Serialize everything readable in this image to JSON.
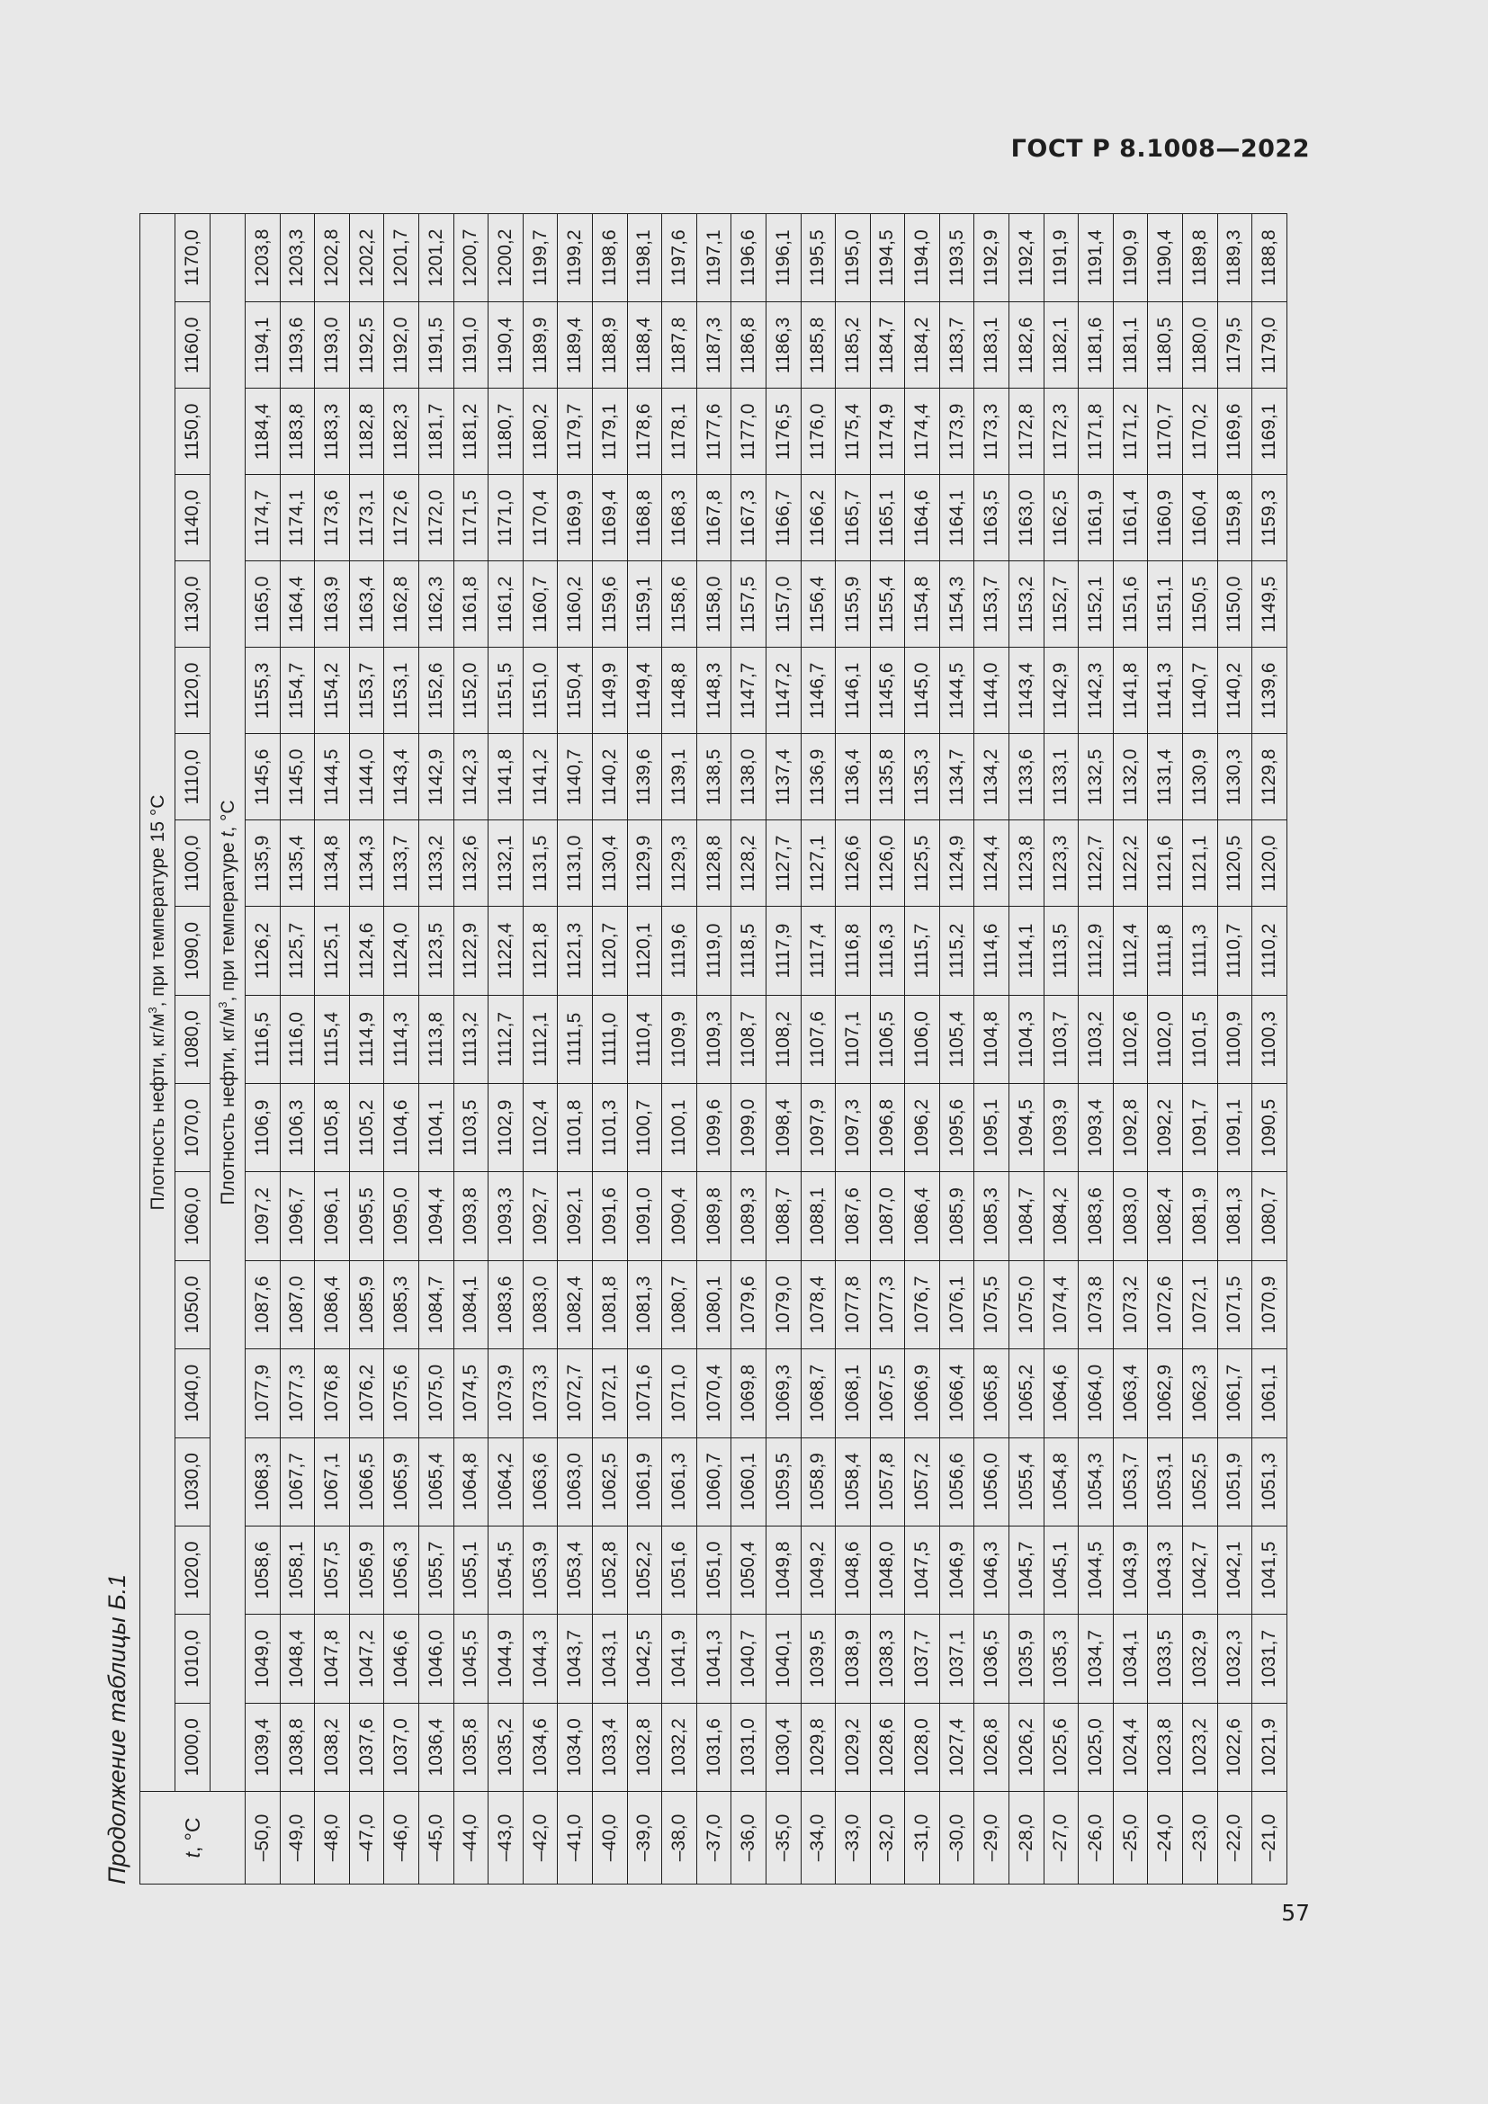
{
  "header": {
    "standard": "ГОСТ Р 8.1008—2022"
  },
  "page_number": "57",
  "caption": "Продолжение таблицы Б.1",
  "table": {
    "t_header": "t, °C",
    "group_header_top": "Плотность нефти, кг/м3, при температуре 15 °C",
    "group_header_top_parts": {
      "before": "Плотность нефти, кг/м",
      "sup": "3",
      "after": ", при температуре 15 °C"
    },
    "group_header_bottom_parts": {
      "before": "Плотность нефти, кг/м",
      "sup": "3",
      "after": ", при температуре ",
      "italic": "t",
      "end": ", °C"
    },
    "columns": [
      "1000,0",
      "1010,0",
      "1020,0",
      "1030,0",
      "1040,0",
      "1050,0",
      "1060,0",
      "1070,0",
      "1080,0",
      "1090,0",
      "1100,0",
      "1110,0",
      "1120,0",
      "1130,0",
      "1140,0",
      "1150,0",
      "1160,0",
      "1170,0"
    ],
    "rows": [
      {
        "t": "–50,0",
        "v": [
          "1039,4",
          "1049,0",
          "1058,6",
          "1068,3",
          "1077,9",
          "1087,6",
          "1097,2",
          "1106,9",
          "1116,5",
          "1126,2",
          "1135,9",
          "1145,6",
          "1155,3",
          "1165,0",
          "1174,7",
          "1184,4",
          "1194,1",
          "1203,8"
        ]
      },
      {
        "t": "–49,0",
        "v": [
          "1038,8",
          "1048,4",
          "1058,1",
          "1067,7",
          "1077,3",
          "1087,0",
          "1096,7",
          "1106,3",
          "1116,0",
          "1125,7",
          "1135,4",
          "1145,0",
          "1154,7",
          "1164,4",
          "1174,1",
          "1183,8",
          "1193,6",
          "1203,3"
        ]
      },
      {
        "t": "–48,0",
        "v": [
          "1038,2",
          "1047,8",
          "1057,5",
          "1067,1",
          "1076,8",
          "1086,4",
          "1096,1",
          "1105,8",
          "1115,4",
          "1125,1",
          "1134,8",
          "1144,5",
          "1154,2",
          "1163,9",
          "1173,6",
          "1183,3",
          "1193,0",
          "1202,8"
        ]
      },
      {
        "t": "–47,0",
        "v": [
          "1037,6",
          "1047,2",
          "1056,9",
          "1066,5",
          "1076,2",
          "1085,9",
          "1095,5",
          "1105,2",
          "1114,9",
          "1124,6",
          "1134,3",
          "1144,0",
          "1153,7",
          "1163,4",
          "1173,1",
          "1182,8",
          "1192,5",
          "1202,2"
        ]
      },
      {
        "t": "–46,0",
        "v": [
          "1037,0",
          "1046,6",
          "1056,3",
          "1065,9",
          "1075,6",
          "1085,3",
          "1095,0",
          "1104,6",
          "1114,3",
          "1124,0",
          "1133,7",
          "1143,4",
          "1153,1",
          "1162,8",
          "1172,6",
          "1182,3",
          "1192,0",
          "1201,7"
        ]
      },
      {
        "t": "–45,0",
        "v": [
          "1036,4",
          "1046,0",
          "1055,7",
          "1065,4",
          "1075,0",
          "1084,7",
          "1094,4",
          "1104,1",
          "1113,8",
          "1123,5",
          "1133,2",
          "1142,9",
          "1152,6",
          "1162,3",
          "1172,0",
          "1181,7",
          "1191,5",
          "1201,2"
        ]
      },
      {
        "t": "–44,0",
        "v": [
          "1035,8",
          "1045,5",
          "1055,1",
          "1064,8",
          "1074,5",
          "1084,1",
          "1093,8",
          "1103,5",
          "1113,2",
          "1122,9",
          "1132,6",
          "1142,3",
          "1152,0",
          "1161,8",
          "1171,5",
          "1181,2",
          "1191,0",
          "1200,7"
        ]
      },
      {
        "t": "–43,0",
        "v": [
          "1035,2",
          "1044,9",
          "1054,5",
          "1064,2",
          "1073,9",
          "1083,6",
          "1093,3",
          "1102,9",
          "1112,7",
          "1122,4",
          "1132,1",
          "1141,8",
          "1151,5",
          "1161,2",
          "1171,0",
          "1180,7",
          "1190,4",
          "1200,2"
        ]
      },
      {
        "t": "–42,0",
        "v": [
          "1034,6",
          "1044,3",
          "1053,9",
          "1063,6",
          "1073,3",
          "1083,0",
          "1092,7",
          "1102,4",
          "1112,1",
          "1121,8",
          "1131,5",
          "1141,2",
          "1151,0",
          "1160,7",
          "1170,4",
          "1180,2",
          "1189,9",
          "1199,7"
        ]
      },
      {
        "t": "–41,0",
        "v": [
          "1034,0",
          "1043,7",
          "1053,4",
          "1063,0",
          "1072,7",
          "1082,4",
          "1092,1",
          "1101,8",
          "1111,5",
          "1121,3",
          "1131,0",
          "1140,7",
          "1150,4",
          "1160,2",
          "1169,9",
          "1179,7",
          "1189,4",
          "1199,2"
        ]
      },
      {
        "t": "–40,0",
        "v": [
          "1033,4",
          "1043,1",
          "1052,8",
          "1062,5",
          "1072,1",
          "1081,8",
          "1091,6",
          "1101,3",
          "1111,0",
          "1120,7",
          "1130,4",
          "1140,2",
          "1149,9",
          "1159,6",
          "1169,4",
          "1179,1",
          "1188,9",
          "1198,6"
        ]
      },
      {
        "t": "–39,0",
        "v": [
          "1032,8",
          "1042,5",
          "1052,2",
          "1061,9",
          "1071,6",
          "1081,3",
          "1091,0",
          "1100,7",
          "1110,4",
          "1120,1",
          "1129,9",
          "1139,6",
          "1149,4",
          "1159,1",
          "1168,8",
          "1178,6",
          "1188,4",
          "1198,1"
        ]
      },
      {
        "t": "–38,0",
        "v": [
          "1032,2",
          "1041,9",
          "1051,6",
          "1061,3",
          "1071,0",
          "1080,7",
          "1090,4",
          "1100,1",
          "1109,9",
          "1119,6",
          "1129,3",
          "1139,1",
          "1148,8",
          "1158,6",
          "1168,3",
          "1178,1",
          "1187,8",
          "1197,6"
        ]
      },
      {
        "t": "–37,0",
        "v": [
          "1031,6",
          "1041,3",
          "1051,0",
          "1060,7",
          "1070,4",
          "1080,1",
          "1089,8",
          "1099,6",
          "1109,3",
          "1119,0",
          "1128,8",
          "1138,5",
          "1148,3",
          "1158,0",
          "1167,8",
          "1177,6",
          "1187,3",
          "1197,1"
        ]
      },
      {
        "t": "–36,0",
        "v": [
          "1031,0",
          "1040,7",
          "1050,4",
          "1060,1",
          "1069,8",
          "1079,6",
          "1089,3",
          "1099,0",
          "1108,7",
          "1118,5",
          "1128,2",
          "1138,0",
          "1147,7",
          "1157,5",
          "1167,3",
          "1177,0",
          "1186,8",
          "1196,6"
        ]
      },
      {
        "t": "–35,0",
        "v": [
          "1030,4",
          "1040,1",
          "1049,8",
          "1059,5",
          "1069,3",
          "1079,0",
          "1088,7",
          "1098,4",
          "1108,2",
          "1117,9",
          "1127,7",
          "1137,4",
          "1147,2",
          "1157,0",
          "1166,7",
          "1176,5",
          "1186,3",
          "1196,1"
        ]
      },
      {
        "t": "–34,0",
        "v": [
          "1029,8",
          "1039,5",
          "1049,2",
          "1058,9",
          "1068,7",
          "1078,4",
          "1088,1",
          "1097,9",
          "1107,6",
          "1117,4",
          "1127,1",
          "1136,9",
          "1146,7",
          "1156,4",
          "1166,2",
          "1176,0",
          "1185,8",
          "1195,5"
        ]
      },
      {
        "t": "–33,0",
        "v": [
          "1029,2",
          "1038,9",
          "1048,6",
          "1058,4",
          "1068,1",
          "1077,8",
          "1087,6",
          "1097,3",
          "1107,1",
          "1116,8",
          "1126,6",
          "1136,4",
          "1146,1",
          "1155,9",
          "1165,7",
          "1175,4",
          "1185,2",
          "1195,0"
        ]
      },
      {
        "t": "–32,0",
        "v": [
          "1028,6",
          "1038,3",
          "1048,0",
          "1057,8",
          "1067,5",
          "1077,3",
          "1087,0",
          "1096,8",
          "1106,5",
          "1116,3",
          "1126,0",
          "1135,8",
          "1145,6",
          "1155,4",
          "1165,1",
          "1174,9",
          "1184,7",
          "1194,5"
        ]
      },
      {
        "t": "–31,0",
        "v": [
          "1028,0",
          "1037,7",
          "1047,5",
          "1057,2",
          "1066,9",
          "1076,7",
          "1086,4",
          "1096,2",
          "1106,0",
          "1115,7",
          "1125,5",
          "1135,3",
          "1145,0",
          "1154,8",
          "1164,6",
          "1174,4",
          "1184,2",
          "1194,0"
        ]
      },
      {
        "t": "–30,0",
        "v": [
          "1027,4",
          "1037,1",
          "1046,9",
          "1056,6",
          "1066,4",
          "1076,1",
          "1085,9",
          "1095,6",
          "1105,4",
          "1115,2",
          "1124,9",
          "1134,7",
          "1144,5",
          "1154,3",
          "1164,1",
          "1173,9",
          "1183,7",
          "1193,5"
        ]
      },
      {
        "t": "–29,0",
        "v": [
          "1026,8",
          "1036,5",
          "1046,3",
          "1056,0",
          "1065,8",
          "1075,5",
          "1085,3",
          "1095,1",
          "1104,8",
          "1114,6",
          "1124,4",
          "1134,2",
          "1144,0",
          "1153,7",
          "1163,5",
          "1173,3",
          "1183,1",
          "1192,9"
        ]
      },
      {
        "t": "–28,0",
        "v": [
          "1026,2",
          "1035,9",
          "1045,7",
          "1055,4",
          "1065,2",
          "1075,0",
          "1084,7",
          "1094,5",
          "1104,3",
          "1114,1",
          "1123,8",
          "1133,6",
          "1143,4",
          "1153,2",
          "1163,0",
          "1172,8",
          "1182,6",
          "1192,4"
        ]
      },
      {
        "t": "–27,0",
        "v": [
          "1025,6",
          "1035,3",
          "1045,1",
          "1054,8",
          "1064,6",
          "1074,4",
          "1084,2",
          "1093,9",
          "1103,7",
          "1113,5",
          "1123,3",
          "1133,1",
          "1142,9",
          "1152,7",
          "1162,5",
          "1172,3",
          "1182,1",
          "1191,9"
        ]
      },
      {
        "t": "–26,0",
        "v": [
          "1025,0",
          "1034,7",
          "1044,5",
          "1054,3",
          "1064,0",
          "1073,8",
          "1083,6",
          "1093,4",
          "1103,2",
          "1112,9",
          "1122,7",
          "1132,5",
          "1142,3",
          "1152,1",
          "1161,9",
          "1171,8",
          "1181,6",
          "1191,4"
        ]
      },
      {
        "t": "–25,0",
        "v": [
          "1024,4",
          "1034,1",
          "1043,9",
          "1053,7",
          "1063,4",
          "1073,2",
          "1083,0",
          "1092,8",
          "1102,6",
          "1112,4",
          "1122,2",
          "1132,0",
          "1141,8",
          "1151,6",
          "1161,4",
          "1171,2",
          "1181,1",
          "1190,9"
        ]
      },
      {
        "t": "–24,0",
        "v": [
          "1023,8",
          "1033,5",
          "1043,3",
          "1053,1",
          "1062,9",
          "1072,6",
          "1082,4",
          "1092,2",
          "1102,0",
          "1111,8",
          "1121,6",
          "1131,4",
          "1141,3",
          "1151,1",
          "1160,9",
          "1170,7",
          "1180,5",
          "1190,4"
        ]
      },
      {
        "t": "–23,0",
        "v": [
          "1023,2",
          "1032,9",
          "1042,7",
          "1052,5",
          "1062,3",
          "1072,1",
          "1081,9",
          "1091,7",
          "1101,5",
          "1111,3",
          "1121,1",
          "1130,9",
          "1140,7",
          "1150,5",
          "1160,4",
          "1170,2",
          "1180,0",
          "1189,8"
        ]
      },
      {
        "t": "–22,0",
        "v": [
          "1022,6",
          "1032,3",
          "1042,1",
          "1051,9",
          "1061,7",
          "1071,5",
          "1081,3",
          "1091,1",
          "1100,9",
          "1110,7",
          "1120,5",
          "1130,3",
          "1140,2",
          "1150,0",
          "1159,8",
          "1169,6",
          "1179,5",
          "1189,3"
        ]
      },
      {
        "t": "–21,0",
        "v": [
          "1021,9",
          "1031,7",
          "1041,5",
          "1051,3",
          "1061,1",
          "1070,9",
          "1080,7",
          "1090,5",
          "1100,3",
          "1110,2",
          "1120,0",
          "1129,8",
          "1139,6",
          "1149,5",
          "1159,3",
          "1169,1",
          "1179,0",
          "1188,8"
        ]
      }
    ]
  }
}
